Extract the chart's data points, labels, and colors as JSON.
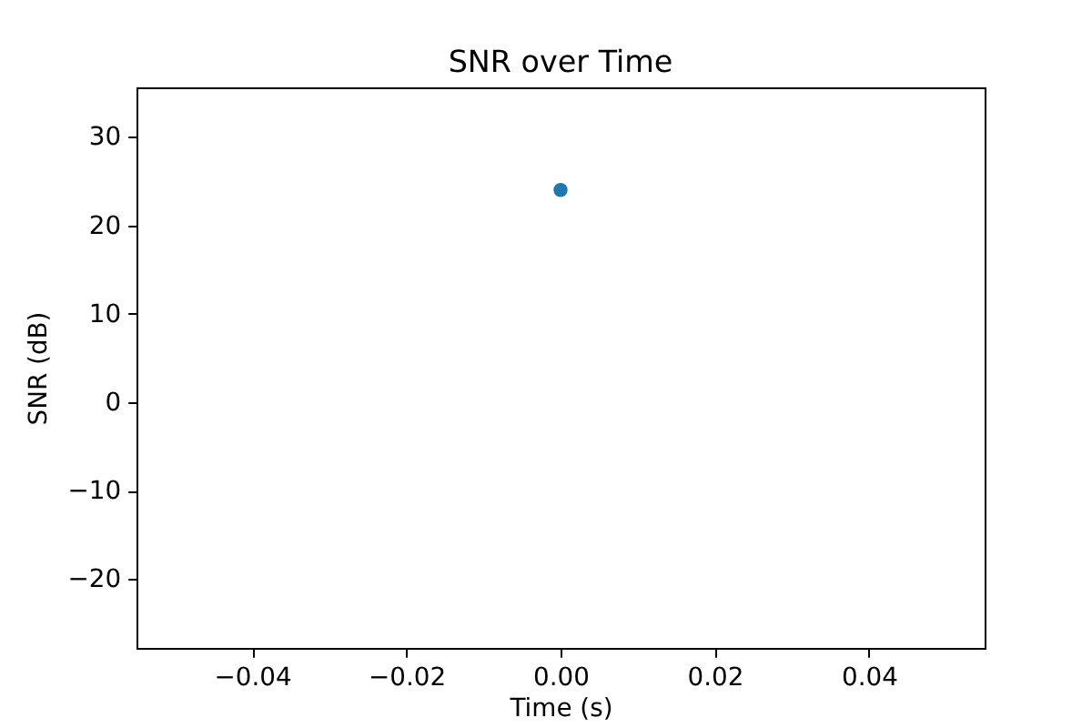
{
  "chart_data": {
    "type": "scatter",
    "title": "SNR over Time",
    "xlabel": "Time (s)",
    "ylabel": "SNR (dB)",
    "x": [
      0
    ],
    "series": [
      {
        "color": "#1f77b4",
        "values": [
          24
        ]
      }
    ],
    "xlim": [
      -0.055,
      0.055
    ],
    "ylim": [
      -27.8,
      35.6
    ],
    "xticks": [
      {
        "value": -0.04,
        "label": "−0.04"
      },
      {
        "value": -0.02,
        "label": "−0.02"
      },
      {
        "value": 0,
        "label": "0.00"
      },
      0.02,
      0.04
    ],
    "yticks": [
      {
        "value": -20,
        "label": "−20"
      },
      {
        "value": -10,
        "label": "−10"
      },
      0,
      10,
      20,
      30
    ],
    "marker": "circle"
  }
}
